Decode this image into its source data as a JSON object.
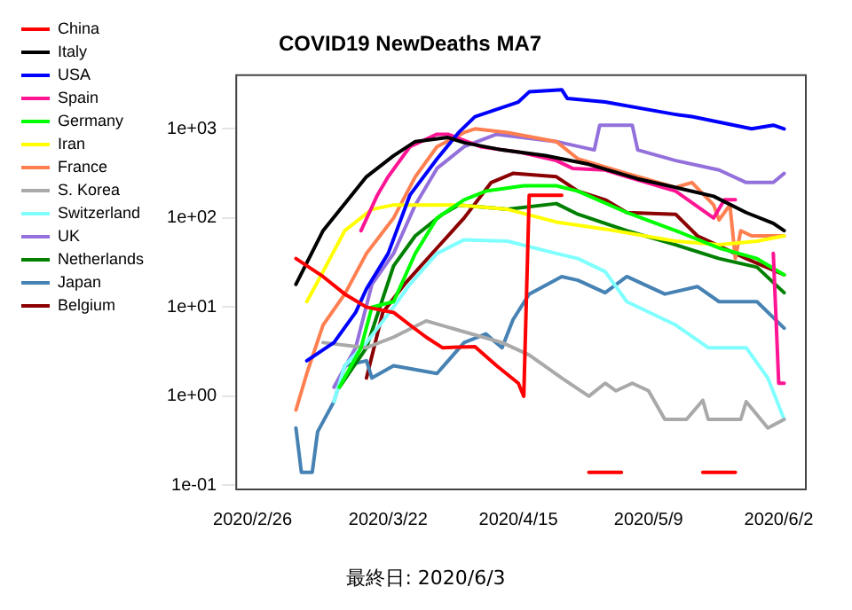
{
  "chart_data": {
    "type": "line",
    "title": "COVID19 NewDeaths MA7",
    "annotations": [
      "最終日: 2020/6/3"
    ],
    "xlim": [
      "2020-02-23",
      "2020-06-07"
    ],
    "xticks": [
      {
        "value": "2020-02-26",
        "label": "2020/2/26"
      },
      {
        "value": "2020-03-22",
        "label": "2020/3/22"
      },
      {
        "value": "2020-04-15",
        "label": "2020/4/15"
      },
      {
        "value": "2020-05-09",
        "label": "2020/5/9"
      },
      {
        "value": "2020-06-02",
        "label": "2020/6/2"
      }
    ],
    "ylim": [
      0.09,
      4000
    ],
    "yticks": [
      {
        "value": 0.1,
        "label": "1e-01"
      },
      {
        "value": 1,
        "label": "1e+00"
      },
      {
        "value": 10,
        "label": "1e+01"
      },
      {
        "value": 100,
        "label": "1e+02"
      },
      {
        "value": 1000,
        "label": "1e+03"
      }
    ],
    "log": "y",
    "legend": "top left",
    "marker": "none",
    "series": [
      {
        "name": "China",
        "color": "#ff0000",
        "x": [
          "2020-03-05",
          "2020-03-10",
          "2020-03-14",
          "2020-03-18",
          "2020-03-23",
          "2020-03-26",
          "2020-03-29",
          "2020-04-01",
          "2020-04-07",
          "2020-04-11",
          "2020-04-15",
          "2020-04-16",
          "2020-04-17",
          "2020-04-23",
          "2020-04-24",
          "2020-04-28",
          "2020-05-04",
          "2020-05-05",
          "2020-05-19",
          "2020-05-25"
        ],
        "values": [
          35,
          22,
          14,
          10,
          8.7,
          6.3,
          4.6,
          3.5,
          3.6,
          2.2,
          1.4,
          1,
          180,
          180,
          null,
          0.14,
          0.14,
          null,
          0.14,
          0.14
        ]
      },
      {
        "name": "Italy",
        "color": "#000000",
        "x": [
          "2020-03-05",
          "2020-03-10",
          "2020-03-18",
          "2020-03-23",
          "2020-03-27",
          "2020-04-02",
          "2020-04-05",
          "2020-04-12",
          "2020-04-20",
          "2020-04-28",
          "2020-05-07",
          "2020-05-14",
          "2020-05-21",
          "2020-05-27",
          "2020-06-01",
          "2020-06-03"
        ],
        "values": [
          18,
          72,
          290,
          500,
          720,
          800,
          700,
          580,
          500,
          400,
          275,
          220,
          175,
          115,
          87,
          72
        ]
      },
      {
        "name": "USA",
        "color": "#0000ff",
        "x": [
          "2020-03-07",
          "2020-03-12",
          "2020-03-16",
          "2020-03-18",
          "2020-03-22",
          "2020-03-26",
          "2020-03-31",
          "2020-04-04",
          "2020-04-07",
          "2020-04-15",
          "2020-04-17",
          "2020-04-23",
          "2020-04-24",
          "2020-05-01",
          "2020-05-14",
          "2020-05-17",
          "2020-05-28",
          "2020-06-01",
          "2020-06-03"
        ],
        "values": [
          2.5,
          4,
          8.7,
          16,
          40,
          180,
          460,
          910,
          1370,
          2000,
          2600,
          2750,
          2200,
          2000,
          1450,
          1370,
          1000,
          1100,
          1000
        ]
      },
      {
        "name": "Spain",
        "color": "#ff1493",
        "x": [
          "2020-03-17",
          "2020-03-20",
          "2020-03-22",
          "2020-03-26",
          "2020-03-31",
          "2020-04-02",
          "2020-04-08",
          "2020-04-15",
          "2020-04-22",
          "2020-04-25",
          "2020-05-01",
          "2020-05-05",
          "2020-05-14",
          "2020-05-21",
          "2020-05-23",
          "2020-05-25",
          "2020-05-28",
          "2020-06-01",
          "2020-06-02",
          "2020-06-03"
        ],
        "values": [
          72,
          180,
          290,
          630,
          870,
          870,
          630,
          550,
          440,
          360,
          345,
          290,
          200,
          100,
          160,
          160,
          null,
          40,
          1.4,
          1.4
        ]
      },
      {
        "name": "Germany",
        "color": "#00ff00",
        "x": [
          "2020-03-13",
          "2020-03-17",
          "2020-03-19",
          "2020-03-23",
          "2020-03-27",
          "2020-03-31",
          "2020-04-05",
          "2020-04-09",
          "2020-04-16",
          "2020-04-22",
          "2020-04-26",
          "2020-05-05",
          "2020-05-14",
          "2020-05-22",
          "2020-05-29",
          "2020-06-03"
        ],
        "values": [
          1.26,
          3.5,
          10,
          11.5,
          40,
          100,
          160,
          200,
          230,
          230,
          200,
          115,
          72,
          46,
          35,
          23
        ]
      },
      {
        "name": "Iran",
        "color": "#ffff00",
        "x": [
          "2020-03-07",
          "2020-03-10",
          "2020-03-14",
          "2020-03-19",
          "2020-03-23",
          "2020-04-04",
          "2020-04-13",
          "2020-04-22",
          "2020-05-01",
          "2020-05-14",
          "2020-05-22",
          "2020-05-29",
          "2020-06-03"
        ],
        "values": [
          11.5,
          25,
          72,
          125,
          140,
          140,
          125,
          90,
          75,
          55,
          50,
          55,
          63
        ]
      },
      {
        "name": "France",
        "color": "#ff7f50",
        "x": [
          "2020-03-05",
          "2020-03-07",
          "2020-03-10",
          "2020-03-14",
          "2020-03-18",
          "2020-03-23",
          "2020-03-27",
          "2020-03-31",
          "2020-04-05",
          "2020-04-07",
          "2020-04-13",
          "2020-04-22",
          "2020-04-26",
          "2020-05-05",
          "2020-05-14",
          "2020-05-17",
          "2020-05-21",
          "2020-05-22",
          "2020-05-24",
          "2020-05-25",
          "2020-05-26",
          "2020-05-28",
          "2020-06-03"
        ],
        "values": [
          0.7,
          1.8,
          6.3,
          14,
          40,
          100,
          290,
          630,
          910,
          1000,
          910,
          720,
          460,
          316,
          220,
          250,
          140,
          95,
          140,
          35,
          72,
          63,
          63
        ]
      },
      {
        "name": "S. Korea",
        "color": "#a9a9a9",
        "x": [
          "2020-03-10",
          "2020-03-18",
          "2020-03-23",
          "2020-03-29",
          "2020-04-04",
          "2020-04-12",
          "2020-04-17",
          "2020-04-23",
          "2020-04-28",
          "2020-05-01",
          "2020-05-03",
          "2020-05-06",
          "2020-05-09",
          "2020-05-12",
          "2020-05-16",
          "2020-05-19",
          "2020-05-20",
          "2020-05-26",
          "2020-05-27",
          "2020-05-31",
          "2020-06-03"
        ],
        "values": [
          4,
          3.5,
          4.6,
          7,
          5.5,
          4,
          2.9,
          1.6,
          1,
          1.4,
          1.15,
          1.4,
          1.15,
          0.55,
          0.55,
          0.9,
          0.55,
          0.55,
          0.87,
          0.44,
          0.55
        ]
      },
      {
        "name": "Switzerland",
        "color": "#80ffff",
        "x": [
          "2020-03-12",
          "2020-03-14",
          "2020-03-18",
          "2020-03-23",
          "2020-03-26",
          "2020-03-31",
          "2020-04-05",
          "2020-04-13",
          "2020-04-22",
          "2020-04-26",
          "2020-05-01",
          "2020-05-05",
          "2020-05-14",
          "2020-05-20",
          "2020-05-27",
          "2020-05-31",
          "2020-06-03"
        ],
        "values": [
          0.87,
          2.2,
          4,
          10,
          18,
          40,
          57,
          55,
          40,
          35,
          25,
          11.5,
          6.3,
          3.5,
          3.5,
          1.6,
          0.55
        ]
      },
      {
        "name": "UK",
        "color": "#9370db",
        "x": [
          "2020-03-12",
          "2020-03-16",
          "2020-03-19",
          "2020-03-23",
          "2020-03-27",
          "2020-03-31",
          "2020-04-05",
          "2020-04-11",
          "2020-04-22",
          "2020-04-29",
          "2020-04-30",
          "2020-05-06",
          "2020-05-07",
          "2020-05-14",
          "2020-05-22",
          "2020-05-27",
          "2020-06-01",
          "2020-06-03"
        ],
        "values": [
          1.26,
          3.5,
          18,
          40,
          140,
          360,
          630,
          870,
          720,
          580,
          1100,
          1100,
          580,
          440,
          345,
          250,
          250,
          316
        ]
      },
      {
        "name": "Netherlands",
        "color": "#008000",
        "x": [
          "2020-03-13",
          "2020-03-18",
          "2020-03-23",
          "2020-03-27",
          "2020-04-01",
          "2020-04-04",
          "2020-04-13",
          "2020-04-22",
          "2020-04-26",
          "2020-05-05",
          "2020-05-14",
          "2020-05-22",
          "2020-05-29",
          "2020-06-03"
        ],
        "values": [
          1.26,
          3.5,
          29,
          63,
          110,
          140,
          125,
          145,
          110,
          72,
          50,
          35,
          28,
          14.5
        ]
      },
      {
        "name": "Japan",
        "color": "#4682b4",
        "x": [
          "2020-03-05",
          "2020-03-06",
          "2020-03-08",
          "2020-03-09",
          "2020-03-12",
          "2020-03-14",
          "2020-03-18",
          "2020-03-19",
          "2020-03-23",
          "2020-03-31",
          "2020-04-05",
          "2020-04-09",
          "2020-04-12",
          "2020-04-14",
          "2020-04-17",
          "2020-04-23",
          "2020-04-26",
          "2020-05-01",
          "2020-05-05",
          "2020-05-12",
          "2020-05-18",
          "2020-05-22",
          "2020-05-29",
          "2020-06-03"
        ],
        "values": [
          0.44,
          0.14,
          0.14,
          0.4,
          0.87,
          2.2,
          2.5,
          1.6,
          2.2,
          1.8,
          4,
          5,
          3.5,
          7.2,
          14,
          22,
          20,
          14.5,
          22,
          14,
          17,
          11.5,
          11.5,
          5.8
        ]
      },
      {
        "name": "Belgium",
        "color": "#8b0000",
        "x": [
          "2020-03-18",
          "2020-03-21",
          "2020-03-25",
          "2020-03-31",
          "2020-04-05",
          "2020-04-10",
          "2020-04-14",
          "2020-04-22",
          "2020-04-26",
          "2020-05-01",
          "2020-05-05",
          "2020-05-14",
          "2020-05-18",
          "2020-05-27",
          "2020-06-03"
        ],
        "values": [
          1.6,
          8.7,
          18,
          46,
          100,
          250,
          316,
          290,
          200,
          160,
          115,
          110,
          63,
          35,
          23
        ]
      }
    ]
  }
}
